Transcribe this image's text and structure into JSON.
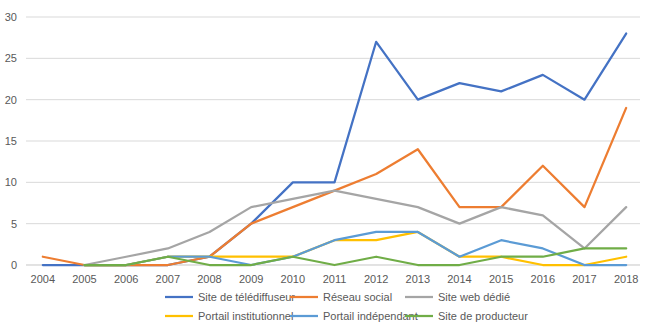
{
  "chart_data": {
    "type": "line",
    "categories": [
      "2004",
      "2005",
      "2006",
      "2007",
      "2008",
      "2009",
      "2010",
      "2011",
      "2012",
      "2013",
      "2014",
      "2015",
      "2016",
      "2017",
      "2018"
    ],
    "series": [
      {
        "name": "Site de télédiffuseur",
        "color": "#4472c4",
        "values": [
          0,
          0,
          0,
          0,
          1,
          5,
          10,
          10,
          27,
          20,
          22,
          21,
          23,
          20,
          28
        ]
      },
      {
        "name": "Réseau social",
        "color": "#ed7d31",
        "values": [
          1,
          0,
          0,
          0,
          1,
          5,
          7,
          9,
          11,
          14,
          7,
          7,
          12,
          7,
          19
        ]
      },
      {
        "name": "Site web dédié",
        "color": "#a5a5a5",
        "values": [
          null,
          0,
          1,
          2,
          4,
          7,
          8,
          9,
          8,
          7,
          5,
          7,
          6,
          2,
          7
        ]
      },
      {
        "name": "Portail institutionnel",
        "color": "#ffc000",
        "values": [
          null,
          0,
          0,
          1,
          1,
          1,
          1,
          3,
          3,
          4,
          1,
          1,
          0,
          0,
          1
        ]
      },
      {
        "name": "Portail indépendant",
        "color": "#5b9bd5",
        "values": [
          null,
          0,
          0,
          1,
          1,
          0,
          1,
          3,
          4,
          4,
          1,
          3,
          2,
          0,
          0
        ]
      },
      {
        "name": "Site de producteur",
        "color": "#70ad47",
        "values": [
          null,
          0,
          0,
          1,
          0,
          0,
          1,
          0,
          1,
          0,
          0,
          1,
          1,
          2,
          2
        ]
      }
    ],
    "ylim": [
      0,
      30
    ],
    "yticks": [
      0,
      5,
      10,
      15,
      20,
      25,
      30
    ],
    "grid": true,
    "legend": "bottom"
  }
}
